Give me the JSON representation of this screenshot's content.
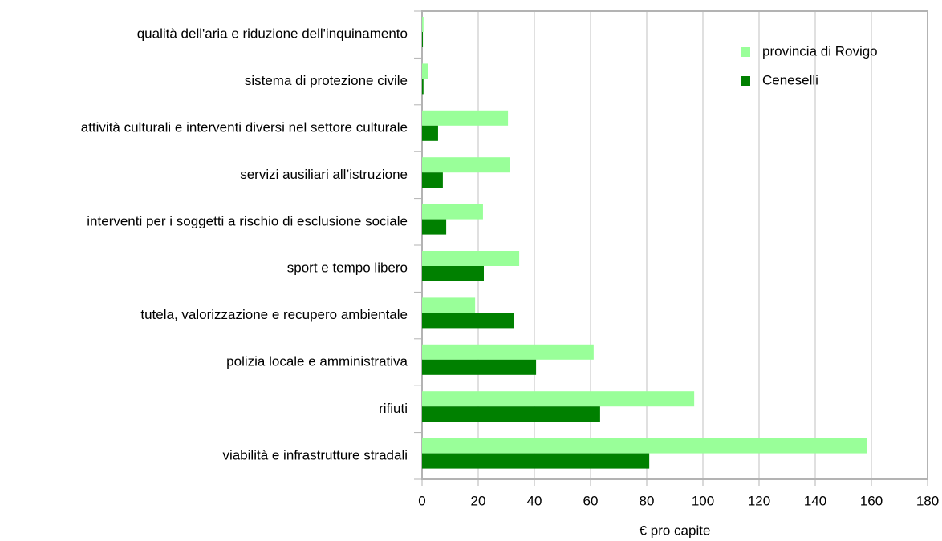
{
  "chart_data": {
    "type": "hbar",
    "x_label": "€ pro capite",
    "categories": [
      "qualità dell'aria e riduzione dell'inquinamento",
      "sistema di protezione civile",
      "attività culturali e interventi diversi nel settore culturale",
      "servizi ausiliari all’istruzione",
      "interventi per i soggetti a rischio di esclusione sociale",
      "sport e tempo libero",
      "tutela, valorizzazione e recupero ambientale",
      "polizia locale e amministrativa",
      "rifiuti",
      "viabilità e infrastrutture stradali"
    ],
    "series": [
      {
        "name": "provincia di Rovigo",
        "color": "#99ff99",
        "values": [
          0.5,
          2,
          30.6,
          31.4,
          21.7,
          34.6,
          18.9,
          61.1,
          96.9,
          158.3
        ]
      },
      {
        "name": "Ceneselli",
        "color": "#008000",
        "values": [
          0.3,
          0.5,
          5.7,
          7.4,
          8.6,
          22,
          32.6,
          40.6,
          63.4,
          80.9
        ]
      }
    ],
    "xlim": [
      0,
      180
    ],
    "xticks": [
      0,
      20,
      40,
      60,
      80,
      100,
      120,
      140,
      160,
      180
    ],
    "grid": true,
    "legend": "upper right"
  }
}
